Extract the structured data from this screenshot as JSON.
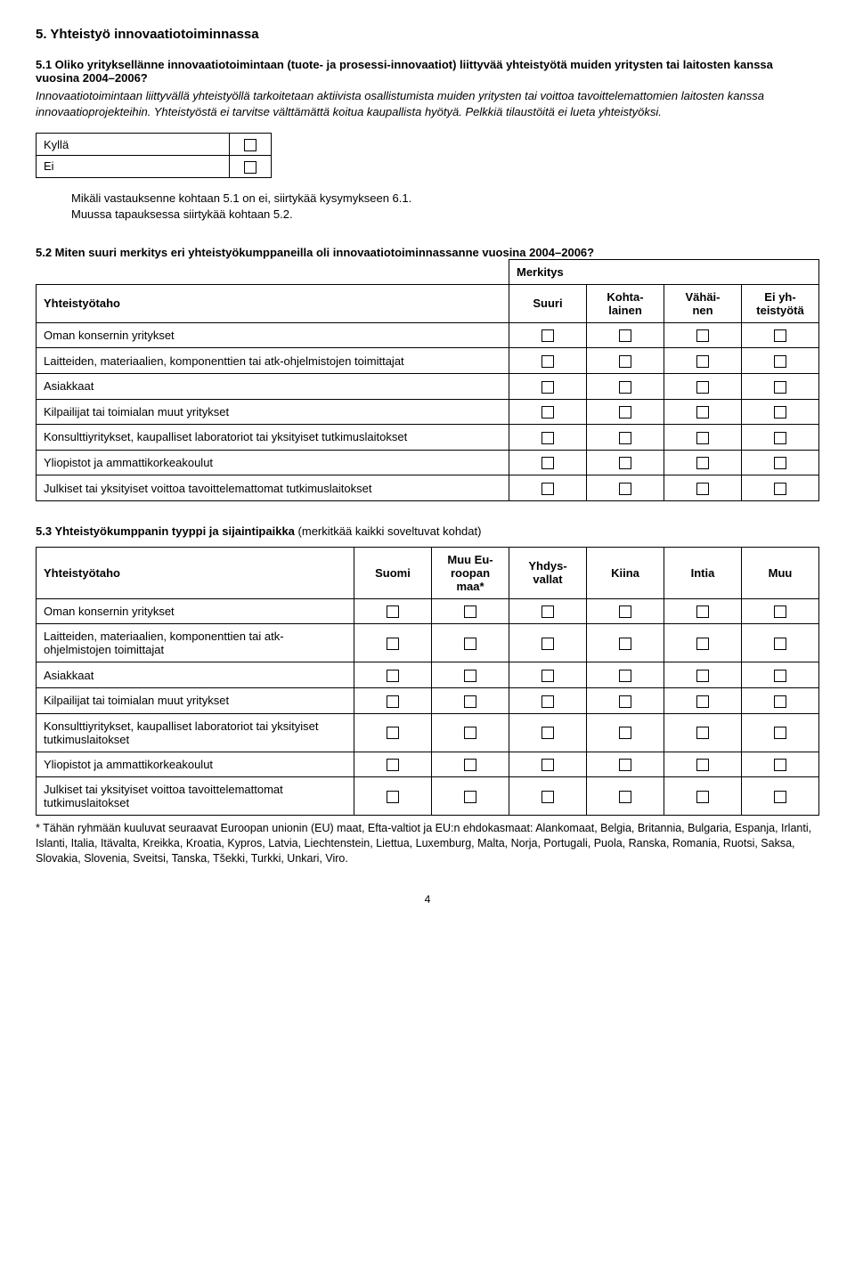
{
  "section5": {
    "title": "5. Yhteistyö innovaatiotoiminnassa"
  },
  "q51": {
    "title": "5.1 Oliko yrityksellänne innovaatiotoimintaan (tuote- ja prosessi-innovaatiot) liittyvää yhteistyötä muiden yritysten tai laitosten kanssa vuosina 2004–2006?",
    "desc": "Innovaatiotoimintaan liittyvällä yhteistyöllä tarkoitetaan aktiivista osallistumista muiden yritysten tai voittoa tavoittelemattomien laitosten kanssa innovaatioprojekteihin. Yhteistyöstä ei tarvitse välttämättä koitua kaupallista hyötyä. Pelkkiä tilaustöitä ei lueta yhteistyöksi.",
    "yes": "Kyllä",
    "no": "Ei",
    "note1": "Mikäli vastauksenne kohtaan 5.1 on ei, siirtykää kysymykseen 6.1.",
    "note2": "Muussa tapauksessa siirtykää kohtaan 5.2."
  },
  "q52": {
    "title": "5.2 Miten suuri merkitys eri yhteistyökumppaneilla oli innovaatiotoiminnassanne vuosina 2004–2006?",
    "merkitys": "Merkitys",
    "rowHeader": "Yhteistyötaho",
    "cols": [
      "Suuri",
      "Kohta-\nlainen",
      "Vähäi-\nnen",
      "Ei yh-\nteistyötä"
    ],
    "rows": [
      "Oman konsernin yritykset",
      "Laitteiden, materiaalien, komponenttien tai atk-ohjelmistojen toimittajat",
      "Asiakkaat",
      "Kilpailijat tai toimialan muut yritykset",
      "Konsulttiyritykset, kaupalliset laboratoriot tai yksityiset tutkimuslaitokset",
      "Yliopistot ja ammattikorkeakoulut",
      "Julkiset tai yksityiset voittoa tavoittelemattomat tutkimuslaitokset"
    ]
  },
  "q53": {
    "title_bold": "5.3 Yhteistyökumppanin tyyppi ja sijaintipaikka",
    "title_rest": " (merkitkää kaikki soveltuvat kohdat)",
    "rowHeader": "Yhteistyötaho",
    "cols": [
      "Suomi",
      "Muu Eu-\nroopan\nmaa*",
      "Yhdys-\nvallat",
      "Kiina",
      "Intia",
      "Muu"
    ],
    "rows": [
      "Oman konsernin yritykset",
      "Laitteiden, materiaalien, komponenttien tai atk-ohjelmistojen toimittajat",
      "Asiakkaat",
      "Kilpailijat tai toimialan muut yritykset",
      "Konsulttiyritykset, kaupalliset laboratoriot tai yksityiset tutkimuslaitokset",
      "Yliopistot ja ammattikorkeakoulut",
      "Julkiset tai yksityiset voittoa tavoittelemattomat tutkimuslaitokset"
    ],
    "footnote": "* Tähän ryhmään kuuluvat seuraavat Euroopan unionin (EU) maat, Efta-valtiot ja EU:n ehdokasmaat: Alankomaat, Belgia, Britannia, Bulgaria, Espanja, Irlanti, Islanti, Italia, Itävalta, Kreikka, Kroatia, Kypros, Latvia, Liechtenstein, Liettua, Luxemburg, Malta, Norja, Portugali, Puola, Ranska, Romania, Ruotsi, Saksa, Slovakia, Slovenia, Sveitsi, Tanska, Tšekki, Turkki, Unkari, Viro."
  },
  "pageNum": "4"
}
